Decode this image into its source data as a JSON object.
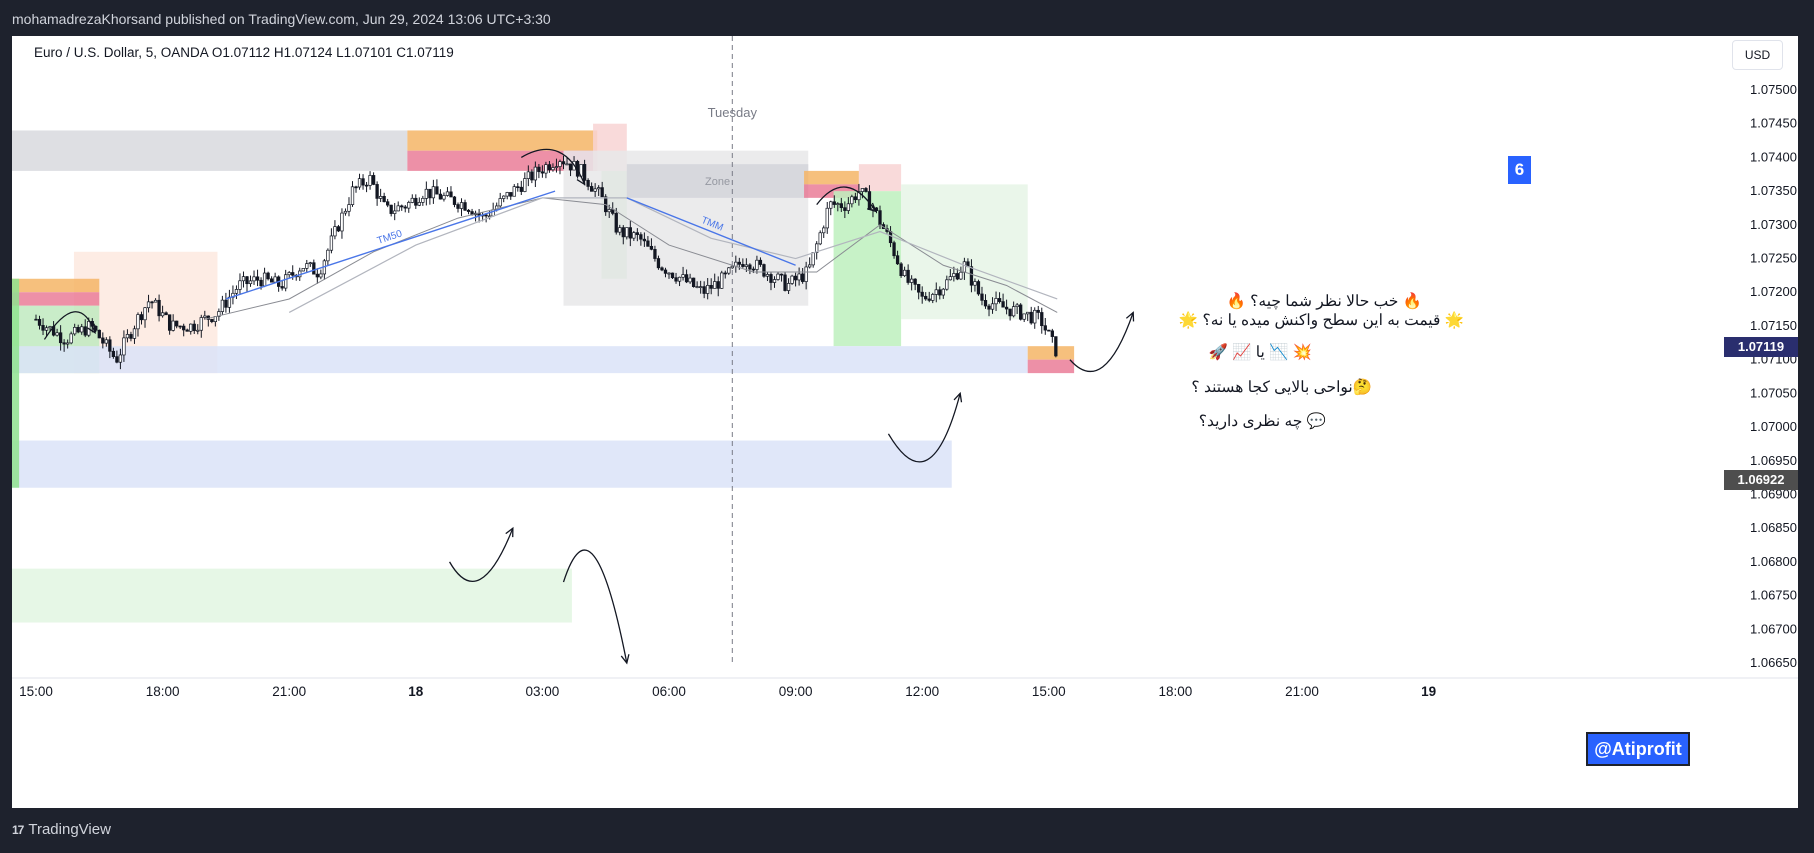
{
  "header": {
    "publisher": "mohamadrezaKhorsand published on TradingView.com, Jun 29, 2024 13:06 UTC+3:30"
  },
  "footer": {
    "brand": "TradingView",
    "brand_mark": "17"
  },
  "legend": {
    "text": "Euro / U.S. Dollar, 5, OANDA  O1.07112  H1.07124  L1.07101  C1.07119"
  },
  "currency_button": "USD",
  "chart_data": {
    "type": "candlestick",
    "symbol": "Euro / U.S. Dollar, 5, OANDA",
    "ohlc": {
      "open": 1.07112,
      "high": 1.07124,
      "low": 1.07101,
      "close": 1.07119
    },
    "ylim": [
      1.0664,
      1.0756
    ],
    "y_ticks": [
      "1.07500",
      "1.07450",
      "1.07400",
      "1.07350",
      "1.07300",
      "1.07250",
      "1.07200",
      "1.07150",
      "1.07100",
      "1.07050",
      "1.07000",
      "1.06950",
      "1.06900",
      "1.06850",
      "1.06800",
      "1.06750",
      "1.06700",
      "1.06650"
    ],
    "y_tick_values": [
      1.075,
      1.0745,
      1.074,
      1.0735,
      1.073,
      1.0725,
      1.072,
      1.0715,
      1.071,
      1.0705,
      1.07,
      1.0695,
      1.069,
      1.0685,
      1.068,
      1.0675,
      1.067,
      1.0665
    ],
    "x_ticks": [
      "15:00",
      "18:00",
      "21:00",
      "18",
      "03:00",
      "06:00",
      "09:00",
      "12:00",
      "15:00",
      "18:00",
      "21:00",
      "19"
    ],
    "x_tick_hours": [
      0,
      3,
      6,
      9,
      12,
      15,
      18,
      21,
      24,
      27,
      30,
      33
    ],
    "day_separator": {
      "label": "Tuesday",
      "hour": 16.5
    },
    "last_price": {
      "label": "1.07119",
      "value": 1.07119,
      "color": "#2a2e6e"
    },
    "level_price": {
      "label": "1.06922",
      "value": 1.06922,
      "color": "#4e4e4e"
    },
    "path_points": [
      [
        0,
        1.0716
      ],
      [
        0.7,
        1.0713
      ],
      [
        1.3,
        1.0715
      ],
      [
        1.9,
        1.071
      ],
      [
        2.4,
        1.0716
      ],
      [
        2.7,
        1.0719
      ],
      [
        3.2,
        1.0715
      ],
      [
        3.7,
        1.0715
      ],
      [
        4.3,
        1.0717
      ],
      [
        4.8,
        1.0721
      ],
      [
        5.3,
        1.0722
      ],
      [
        5.8,
        1.0721
      ],
      [
        6.3,
        1.0724
      ],
      [
        6.7,
        1.0723
      ],
      [
        7.1,
        1.0729
      ],
      [
        7.5,
        1.0735
      ],
      [
        7.9,
        1.0737
      ],
      [
        8.3,
        1.0732
      ],
      [
        8.8,
        1.0733
      ],
      [
        9.2,
        1.0735
      ],
      [
        9.7,
        1.0734
      ],
      [
        10.2,
        1.0733
      ],
      [
        10.6,
        1.0731
      ],
      [
        11.3,
        1.0735
      ],
      [
        11.9,
        1.0738
      ],
      [
        12.4,
        1.074
      ],
      [
        12.9,
        1.0738
      ],
      [
        13.4,
        1.0734
      ],
      [
        13.8,
        1.0729
      ],
      [
        14.3,
        1.0728
      ],
      [
        14.8,
        1.0724
      ],
      [
        15.3,
        1.0722
      ],
      [
        15.8,
        1.072
      ],
      [
        16.3,
        1.0722
      ],
      [
        16.8,
        1.0725
      ],
      [
        17.3,
        1.0723
      ],
      [
        17.8,
        1.0721
      ],
      [
        18.3,
        1.0723
      ],
      [
        18.8,
        1.0733
      ],
      [
        19.2,
        1.0733
      ],
      [
        19.5,
        1.0735
      ],
      [
        19.8,
        1.0733
      ],
      [
        20.2,
        1.0728
      ],
      [
        20.6,
        1.0722
      ],
      [
        21.0,
        1.0719
      ],
      [
        21.5,
        1.0721
      ],
      [
        22.0,
        1.0724
      ],
      [
        22.4,
        1.0719
      ],
      [
        22.8,
        1.0718
      ],
      [
        23.3,
        1.0717
      ],
      [
        23.8,
        1.0716
      ],
      [
        24.2,
        1.0711
      ]
    ],
    "ma_fast": [
      [
        4,
        1.0716
      ],
      [
        6,
        1.0719
      ],
      [
        8,
        1.0726
      ],
      [
        10,
        1.0731
      ],
      [
        12,
        1.0734
      ],
      [
        13.5,
        1.0733
      ],
      [
        15,
        1.0727
      ],
      [
        17,
        1.0723
      ],
      [
        18.5,
        1.0723
      ],
      [
        20,
        1.073
      ],
      [
        21.5,
        1.0724
      ],
      [
        23,
        1.0721
      ],
      [
        24.2,
        1.0717
      ]
    ],
    "ma_slow": [
      [
        6,
        1.0717
      ],
      [
        9,
        1.0727
      ],
      [
        12,
        1.0734
      ],
      [
        14,
        1.0734
      ],
      [
        16,
        1.0728
      ],
      [
        18,
        1.0725
      ],
      [
        20,
        1.0729
      ],
      [
        22,
        1.0724
      ],
      [
        24.2,
        1.0719
      ]
    ],
    "zones": [
      {
        "label": "",
        "h0": -1,
        "h1": 8.8,
        "p0": 1.0738,
        "p1": 1.0744,
        "color": "#d8d9de"
      },
      {
        "label": "",
        "h0": 8.8,
        "h1": 13.3,
        "p0": 1.0741,
        "p1": 1.0744,
        "color": "#f4b566"
      },
      {
        "label": "",
        "h0": 8.8,
        "h1": 13.3,
        "p0": 1.0738,
        "p1": 1.0741,
        "color": "#ea7c98"
      },
      {
        "label": "",
        "h0": 13.2,
        "h1": 14.0,
        "p0": 1.0738,
        "p1": 1.0745,
        "color": "#f8d3d3"
      },
      {
        "label": "",
        "h0": 13.4,
        "h1": 14.0,
        "p0": 1.0722,
        "p1": 1.0738,
        "color": "#bde6bd"
      },
      {
        "label": "",
        "h0": 12.5,
        "h1": 18.3,
        "p0": 1.0718,
        "p1": 1.0741,
        "color": "#e7e7e9"
      },
      {
        "label": "Zone",
        "h0": 14.0,
        "h1": 18.3,
        "p0": 1.0734,
        "p1": 1.0739,
        "color": "#d4d5da"
      },
      {
        "label": "",
        "h0": 18.2,
        "h1": 19.5,
        "p0": 1.0736,
        "p1": 1.0738,
        "color": "#f4b566"
      },
      {
        "label": "",
        "h0": 18.2,
        "h1": 19.5,
        "p0": 1.0734,
        "p1": 1.0736,
        "color": "#ea7c98"
      },
      {
        "label": "",
        "h0": 19.5,
        "h1": 20.5,
        "p0": 1.0735,
        "p1": 1.0739,
        "color": "#f8d3d3"
      },
      {
        "label": "",
        "h0": 18.9,
        "h1": 20.5,
        "p0": 1.0712,
        "p1": 1.0735,
        "color": "#bdf0bd"
      },
      {
        "label": "",
        "h0": 20.5,
        "h1": 23.5,
        "p0": 1.0716,
        "p1": 1.0736,
        "color": "#e6f5e6"
      },
      {
        "label": "",
        "h0": 0.9,
        "h1": 4.3,
        "p0": 1.0708,
        "p1": 1.0726,
        "color": "#fde9df"
      },
      {
        "label": "",
        "h0": -1,
        "h1": 1.5,
        "p0": 1.072,
        "p1": 1.0722,
        "color": "#f4b566"
      },
      {
        "label": "",
        "h0": -1,
        "h1": 1.5,
        "p0": 1.0718,
        "p1": 1.072,
        "color": "#ea7c98"
      },
      {
        "label": "",
        "h0": -1,
        "h1": 1.5,
        "p0": 1.0708,
        "p1": 1.0718,
        "color": "#bfeabf"
      },
      {
        "label": "",
        "h0": -1,
        "h1": 23.5,
        "p0": 1.0708,
        "p1": 1.0712,
        "color": "#dbe3f8"
      },
      {
        "label": "",
        "h0": 23.5,
        "h1": 24.6,
        "p0": 1.071,
        "p1": 1.0712,
        "color": "#f4b566"
      },
      {
        "label": "",
        "h0": 23.5,
        "h1": 24.6,
        "p0": 1.0708,
        "p1": 1.071,
        "color": "#ea7c98"
      },
      {
        "label": "",
        "h0": -1,
        "h1": 21.7,
        "p0": 1.0691,
        "p1": 1.0698,
        "color": "#dbe3f8"
      },
      {
        "label": "",
        "h0": -1,
        "h1": -0.4,
        "p0": 1.0691,
        "p1": 1.0722,
        "color": "#8fe28f"
      },
      {
        "label": "",
        "h0": -1,
        "h1": 12.7,
        "p0": 1.0671,
        "p1": 1.0679,
        "color": "#e2f6e2"
      }
    ],
    "trend_lines": [
      {
        "label": "TM50",
        "h0": 4.5,
        "p0": 1.0719,
        "h1": 12.3,
        "p1": 1.0735,
        "color": "#4a76e8"
      },
      {
        "label": "TMM",
        "h0": 14.0,
        "p0": 1.0734,
        "h1": 18.0,
        "p1": 1.0724,
        "color": "#4a76e8"
      }
    ],
    "arrows": [
      {
        "points": [
          [
            0.2,
            1.0713
          ],
          [
            1.0,
            1.0718
          ],
          [
            1.4,
            1.0714
          ]
        ]
      },
      {
        "points": [
          [
            11.5,
            1.074
          ],
          [
            12.5,
            1.0741
          ],
          [
            13.0,
            1.0736
          ]
        ]
      },
      {
        "points": [
          [
            18.5,
            1.0733
          ],
          [
            19.2,
            1.0736
          ],
          [
            19.9,
            1.0732
          ]
        ]
      },
      {
        "points": [
          [
            24.5,
            1.071
          ],
          [
            25.3,
            1.0707
          ],
          [
            26.0,
            1.0717
          ]
        ]
      },
      {
        "points": [
          [
            20.2,
            1.0699
          ],
          [
            21.2,
            1.0691
          ],
          [
            21.9,
            1.0705
          ]
        ]
      },
      {
        "points": [
          [
            9.8,
            1.068
          ],
          [
            10.5,
            1.0675
          ],
          [
            11.3,
            1.0685
          ]
        ]
      },
      {
        "points": [
          [
            12.5,
            1.0677
          ],
          [
            13.2,
            1.0688
          ],
          [
            14.0,
            1.0665
          ]
        ]
      }
    ]
  },
  "notes": [
    {
      "text": "🔥 خب حالا نظر شما چیه؟ 🔥"
    },
    {
      "text": "🌟 قیمت به این سطح واکنش میده یا نه؟ 🌟"
    },
    {
      "text": "💥 📉 یا 📈 🚀"
    },
    {
      "text": "🤔نواحی بالایی کجا هستند ؟"
    },
    {
      "text": "💬 چه نظری دارید؟"
    }
  ],
  "badge": "6",
  "watermark_handle": "@Atiprofit"
}
